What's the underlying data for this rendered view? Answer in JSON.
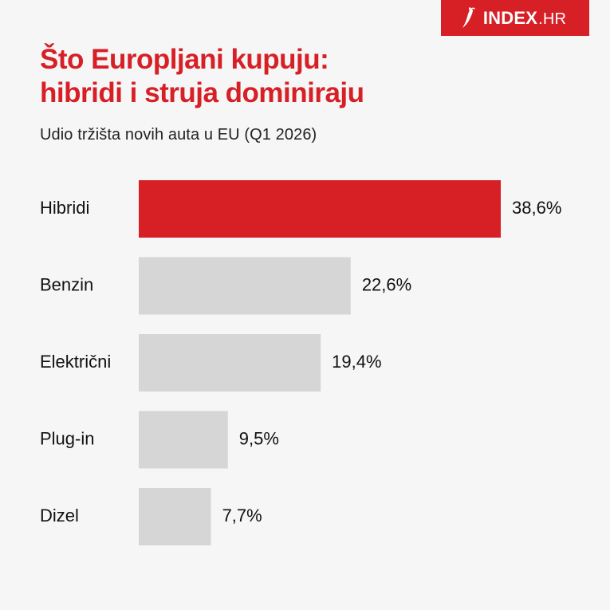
{
  "brand": {
    "name": "INDEX",
    "tld": ".HR",
    "icon": "chili-pepper-icon",
    "color": "#d71f26"
  },
  "title_lines": [
    "Što Europljani kupuju:",
    "hibridi i struja dominiraju"
  ],
  "subtitle": "Udio tržišta novih auta u EU (Q1 2026)",
  "chart_data": {
    "type": "bar",
    "orientation": "horizontal",
    "title": "Što Europljani kupuju: hibridi i struja dominiraju",
    "subtitle": "Udio tržišta novih auta u EU (Q1 2026)",
    "categories": [
      "Hibridi",
      "Benzin",
      "Električni",
      "Plug-in",
      "Dizel"
    ],
    "values": [
      38.6,
      22.6,
      19.4,
      9.5,
      7.7
    ],
    "value_labels": [
      "38,6%",
      "22,6%",
      "19,4%",
      "9,5%",
      "7,7%"
    ],
    "unit": "%",
    "xlabel": "",
    "ylabel": "",
    "xlim": [
      0,
      38.6
    ],
    "grid": false,
    "legend": "none",
    "highlight_category": "Hibridi",
    "colors": {
      "highlight": "#d71f26",
      "default": "#d6d6d6"
    }
  }
}
